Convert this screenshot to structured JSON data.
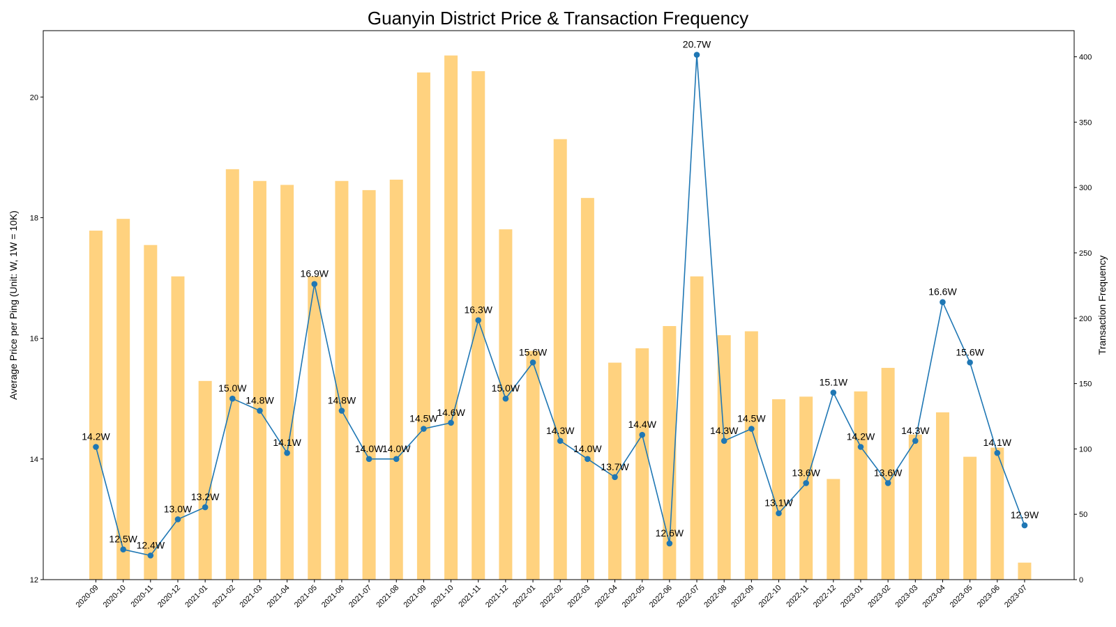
{
  "chart_data": {
    "type": "bar+line",
    "title": "Guanyin District Price & Transaction Frequency",
    "ylabel_left": "Average Price per Ping (Unit: W, 1W = 10K)",
    "ylabel_right": "Transaction Frequency",
    "categories": [
      "2020-09",
      "2020-10",
      "2020-11",
      "2020-12",
      "2021-01",
      "2021-02",
      "2021-03",
      "2021-04",
      "2021-05",
      "2021-06",
      "2021-07",
      "2021-08",
      "2021-09",
      "2021-10",
      "2021-11",
      "2021-12",
      "2022-01",
      "2022-02",
      "2022-03",
      "2022-04",
      "2022-05",
      "2022-06",
      "2022-07",
      "2022-08",
      "2022-09",
      "2022-10",
      "2022-11",
      "2022-12",
      "2023-01",
      "2023-02",
      "2023-03",
      "2023-04",
      "2023-05",
      "2023-06",
      "2023-07"
    ],
    "price": {
      "values": [
        14.2,
        12.5,
        12.4,
        13.0,
        13.2,
        15.0,
        14.8,
        14.1,
        16.9,
        14.8,
        14.0,
        14.0,
        14.5,
        14.6,
        16.3,
        15.0,
        15.6,
        14.3,
        14.0,
        13.7,
        14.4,
        12.6,
        20.7,
        14.3,
        14.5,
        13.1,
        13.6,
        15.1,
        14.2,
        13.6,
        14.3,
        16.6,
        15.6,
        14.1,
        12.9
      ],
      "labels": [
        "14.2W",
        "12.5W",
        "12.4W",
        "13.0W",
        "13.2W",
        "15.0W",
        "14.8W",
        "14.1W",
        "16.9W",
        "14.8W",
        "14.0W",
        "14.0W",
        "14.5W",
        "14.6W",
        "16.3W",
        "15.0W",
        "15.6W",
        "14.3W",
        "14.0W",
        "13.7W",
        "14.4W",
        "12.6W",
        "20.7W",
        "14.3W",
        "14.5W",
        "13.1W",
        "13.6W",
        "15.1W",
        "14.2W",
        "13.6W",
        "14.3W",
        "16.6W",
        "15.6W",
        "14.1W",
        "12.9W"
      ],
      "color": "#1f77b4"
    },
    "frequency": {
      "values": [
        267,
        276,
        256,
        232,
        152,
        314,
        305,
        302,
        232,
        305,
        298,
        306,
        388,
        401,
        389,
        268,
        175,
        337,
        292,
        166,
        177,
        194,
        232,
        187,
        190,
        138,
        140,
        77,
        144,
        162,
        111,
        128,
        94,
        101,
        13
      ],
      "color": "#ffc04d"
    },
    "ylim_left": [
      12,
      21.1
    ],
    "yticks_left": [
      "12",
      "14",
      "16",
      "18",
      "20"
    ],
    "ylim_right": [
      0,
      420
    ],
    "yticks_right": [
      "0",
      "50",
      "100",
      "150",
      "200",
      "250",
      "300",
      "350",
      "400"
    ]
  }
}
